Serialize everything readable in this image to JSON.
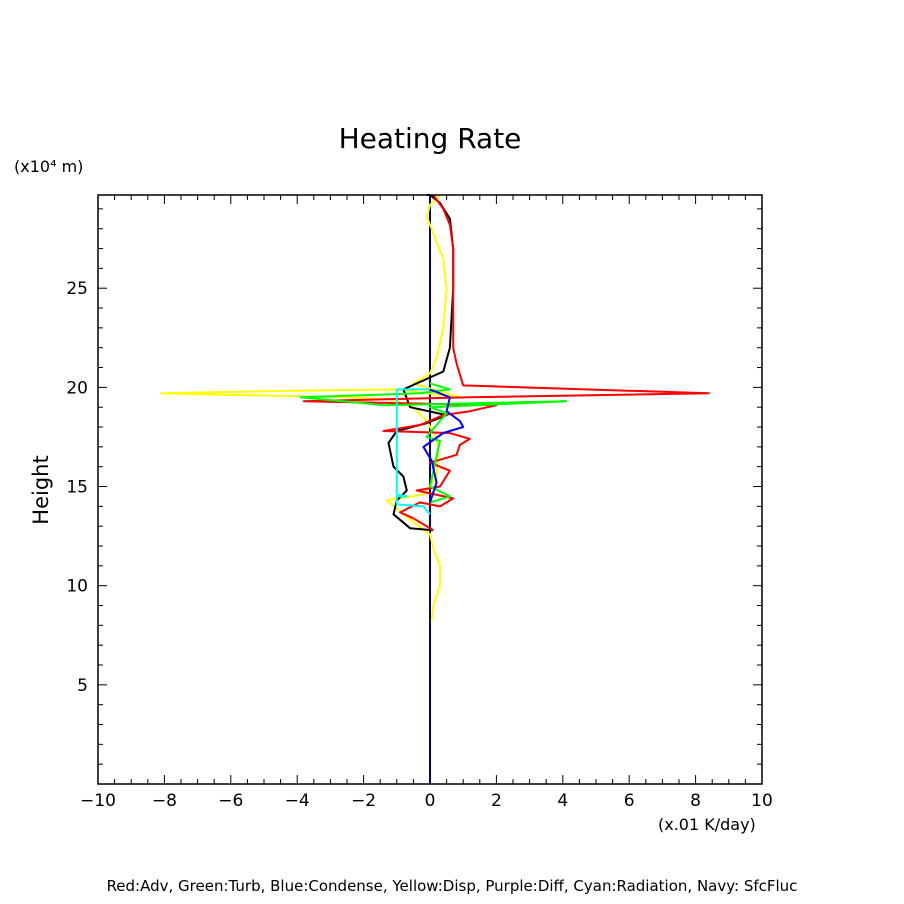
{
  "chart_data": {
    "type": "line",
    "title": "Heating Rate",
    "ylabel": "Height",
    "y_unit": "(x10⁴ m)",
    "x_unit": "(x.01 K/day)",
    "caption": "Red:Adv, Green:Turb, Blue:Condense, Yellow:Disp, Purple:Diff, Cyan:Radiation, Navy: SfcFluc",
    "xlim": [
      -10,
      10
    ],
    "ylim": [
      0,
      29.7
    ],
    "x_ticks": [
      -10,
      -8,
      -6,
      -4,
      -2,
      0,
      2,
      4,
      6,
      8,
      10
    ],
    "x_tick_labels": [
      "−10",
      "−8",
      "−6",
      "−4",
      "−2",
      "0",
      "2",
      "4",
      "6",
      "8",
      "10"
    ],
    "y_ticks": [
      5,
      10,
      15,
      20,
      25
    ],
    "y_tick_labels": [
      "5",
      "10",
      "15",
      "20",
      "25"
    ],
    "series": [
      {
        "name": "Navy: SfcFluc",
        "color": "#000080",
        "x": [
          0,
          0
        ],
        "y": [
          0,
          29.7
        ]
      },
      {
        "name": "Yellow:Disp",
        "color": "#ffff00",
        "x": [
          0.05,
          0.1,
          0.3,
          0.3,
          0.1,
          0,
          -0.5,
          -1.3,
          -0.2,
          0.2,
          0.25,
          0.15,
          -0.1,
          -0.5,
          -1.2,
          -2.5,
          -8.1,
          -5,
          -1,
          0.9,
          -0.5,
          0,
          0.2,
          0.4,
          0.5,
          0.4,
          0.2,
          0.05,
          -0.1,
          0,
          0.2,
          0.3
        ],
        "y": [
          8.2,
          9,
          10,
          11,
          11.9,
          12.6,
          13.2,
          14.3,
          14.6,
          15.5,
          17,
          17.6,
          18.3,
          19,
          19.4,
          19.5,
          19.7,
          19.8,
          19.9,
          19.5,
          20.2,
          20.7,
          21.5,
          23,
          25,
          26.5,
          27.3,
          28,
          28.6,
          29.2,
          29.5,
          29.7
        ]
      },
      {
        "name": "Black",
        "color": "#000000",
        "x": [
          0.1,
          -0.6,
          -1.1,
          -1.0,
          -0.7,
          -0.8,
          -1.1,
          -1.25,
          -1.0,
          -0.1,
          0.5,
          -0.6,
          -0.8,
          0.4,
          0.6,
          0.7,
          0.7,
          0.6,
          0.3,
          0,
          -0.1
        ],
        "y": [
          12.8,
          12.9,
          13.6,
          14.3,
          14.8,
          15.5,
          16.0,
          17.2,
          17.8,
          18.2,
          18.6,
          19.0,
          19.9,
          20.8,
          22,
          25,
          27,
          28.5,
          29.3,
          29.7,
          29.7
        ]
      },
      {
        "name": "Red:Adv",
        "color": "#ff0000",
        "x": [
          0.1,
          -0.5,
          -0.9,
          -0.3,
          0.3,
          0.7,
          -0.4,
          0.3,
          0.6,
          0,
          0.8,
          0.9,
          1.2,
          0.6,
          -1.4,
          -0.3,
          0.4,
          1.2,
          2.0,
          -3.8,
          1.2,
          8.4,
          1.0,
          0.8,
          0.7,
          0.7,
          0.7,
          0.6,
          0.4,
          0.1
        ],
        "y": [
          12.8,
          13.4,
          13.7,
          14.2,
          14.0,
          14.4,
          14.8,
          15.0,
          15.8,
          16.2,
          16.6,
          17.1,
          17.4,
          17.7,
          17.8,
          18.1,
          18.6,
          18.8,
          19.1,
          19.3,
          19.5,
          19.7,
          20.1,
          21.2,
          22,
          25,
          27,
          28.2,
          29,
          29.7
        ]
      },
      {
        "name": "Green:Turb",
        "color": "#00ff00",
        "x": [
          0,
          0.6,
          0,
          0.3,
          -0.1,
          0.5,
          0,
          4.1,
          -1.4,
          -3.9,
          -0.3,
          0.6,
          0
        ],
        "y": [
          14.2,
          14.5,
          15.0,
          17.3,
          17.5,
          18.7,
          19.0,
          19.3,
          19.1,
          19.5,
          19.7,
          19.9,
          20.2
        ]
      },
      {
        "name": "Blue:Condense",
        "color": "#0000ff",
        "x": [
          0,
          0.1,
          0.2,
          0.05,
          -0.2,
          0.4,
          0.6,
          1.0,
          0.9,
          0.5,
          0.6,
          0
        ],
        "y": [
          14.2,
          14.7,
          15.2,
          16.3,
          17.0,
          17.7,
          17.8,
          18.0,
          18.3,
          18.8,
          19.5,
          19.9
        ]
      },
      {
        "name": "Cyan:Radiation",
        "color": "#00ffff",
        "x": [
          0,
          -0.2,
          -1.0,
          -1.0,
          -0.7,
          -1.0,
          -1.0,
          0
        ],
        "y": [
          13.6,
          14.0,
          14.1,
          14.5,
          14.5,
          14.6,
          19.9,
          19.9
        ]
      }
    ]
  }
}
